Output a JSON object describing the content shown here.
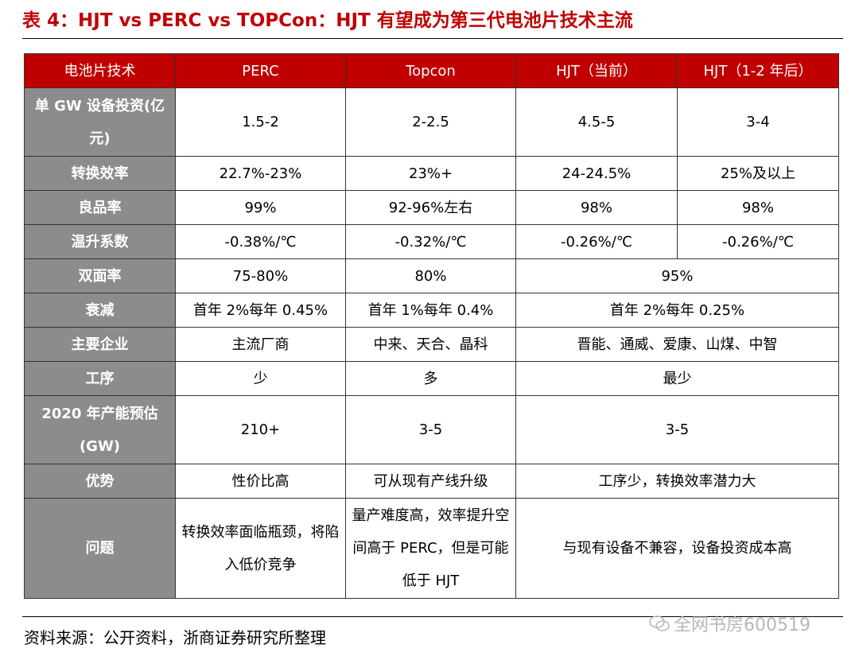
{
  "title": "表 4：HJT vs PERC vs TOPCon：HJT 有望成为第三代电池片技术主流",
  "headers": [
    "电池片技术",
    "PERC",
    "Topcon",
    "HJT（当前）",
    "HJT（1-2 年后）"
  ],
  "rows": [
    {
      "label": "单 GW 设备投资(亿元)",
      "cells": [
        "1.5-2",
        "2-2.5",
        "4.5-5",
        "3-4"
      ]
    },
    {
      "label": "转换效率",
      "cells": [
        "22.7%-23%",
        "23%+",
        "24-24.5%",
        "25%及以上"
      ]
    },
    {
      "label": "良品率",
      "cells": [
        "99%",
        "92-96%左右",
        "98%",
        "98%"
      ]
    },
    {
      "label": "温升系数",
      "cells": [
        "-0.38%/℃",
        "-0.32%/℃",
        "-0.26%/℃",
        "-0.26%/℃"
      ]
    },
    {
      "label": "双面率",
      "cells": [
        "75-80%",
        "80%",
        "95%"
      ]
    },
    {
      "label": "衰减",
      "cells": [
        "首年 2%每年 0.45%",
        "首年 1%每年 0.4%",
        "首年 2%每年 0.25%"
      ]
    },
    {
      "label": "主要企业",
      "cells": [
        "主流厂商",
        "中来、天合、晶科",
        "晋能、通威、爱康、山煤、中智"
      ]
    },
    {
      "label": "工序",
      "cells": [
        "少",
        "多",
        "最少"
      ]
    },
    {
      "label": "2020 年产能预估(GW)",
      "cells": [
        "210+",
        "3-5",
        "3-5"
      ]
    },
    {
      "label": "优势",
      "cells": [
        "性价比高",
        "可从现有产线升级",
        "工序少，转换效率潜力大"
      ]
    },
    {
      "label": "问题",
      "cells": [
        "转换效率面临瓶颈，将陷入低价竞争",
        "量产难度高，效率提升空间高于 PERC，但是可能低于 HJT",
        "与现有设备不兼容，设备投资成本高"
      ]
    }
  ],
  "source": "资料来源：公开资料，浙商证券研究所整理",
  "watermark": "全网书房600519",
  "colors": {
    "header_bg": "#c00000",
    "label_bg": "#8c8c8c",
    "title": "#c00000"
  }
}
